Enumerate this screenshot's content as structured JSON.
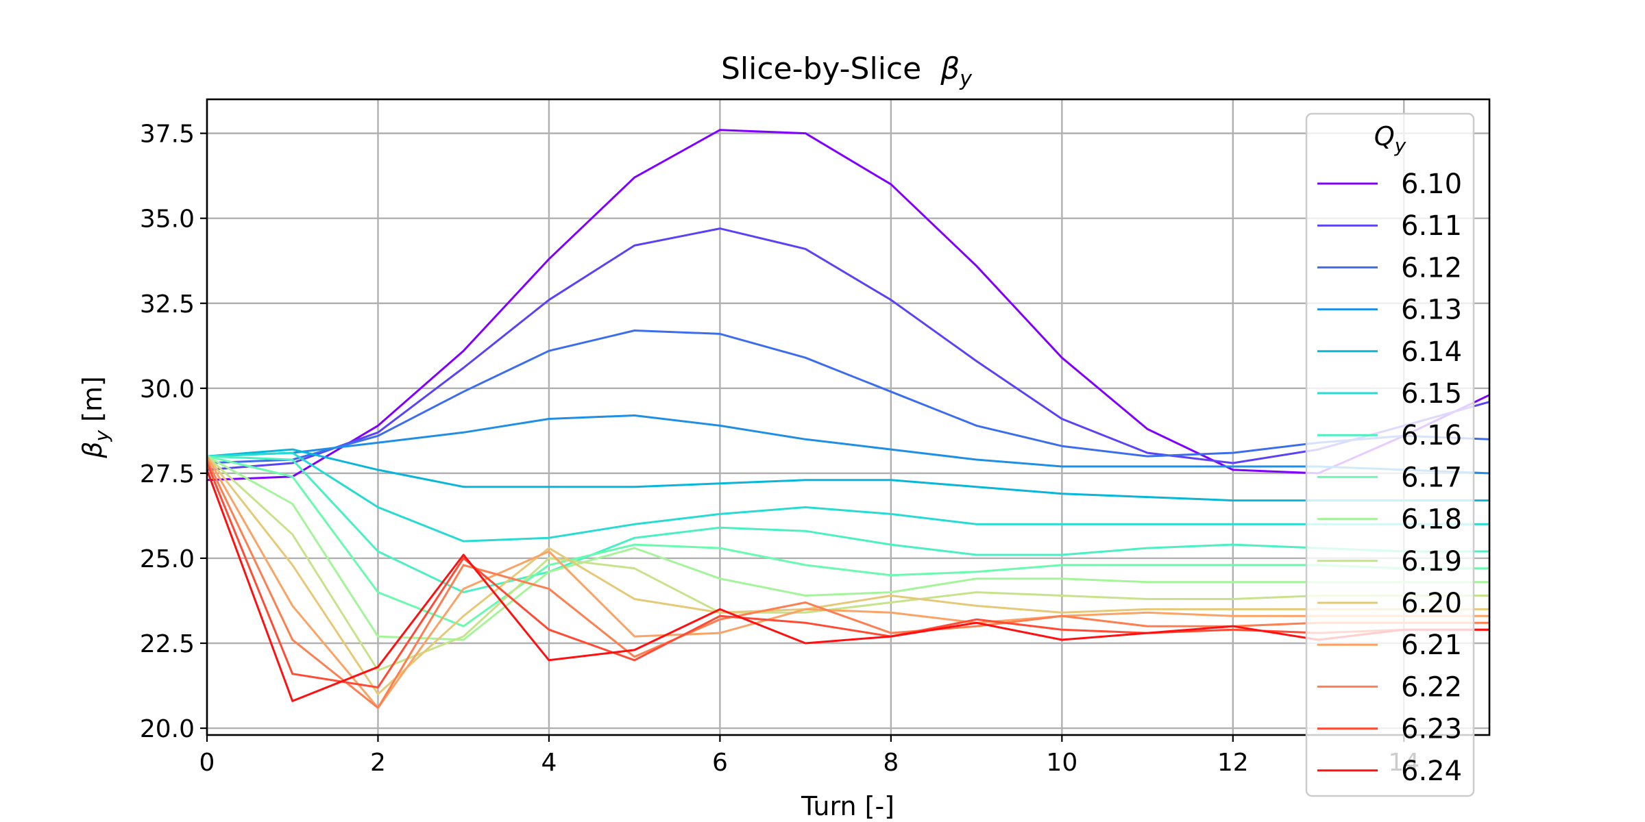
{
  "chart_data": {
    "type": "line",
    "title": "Slice-by-Slice",
    "title_symbol": "β",
    "title_symbol_sub": "y",
    "xlabel": "Turn [-]",
    "ylabel_symbol": "β",
    "ylabel_sub": "y",
    "ylabel_unit": " [m]",
    "xlim": [
      0,
      15
    ],
    "ylim": [
      19.8,
      38.5
    ],
    "x_ticks": [
      0,
      2,
      4,
      6,
      8,
      10,
      12,
      14
    ],
    "y_ticks": [
      20.0,
      22.5,
      25.0,
      27.5,
      30.0,
      32.5,
      35.0,
      37.5
    ],
    "grid": true,
    "legend": {
      "placement": "top-right",
      "title_symbol": "Q",
      "title_sub": "y"
    },
    "x": [
      0,
      1,
      2,
      3,
      4,
      5,
      6,
      7,
      8,
      9,
      10,
      11,
      12,
      13,
      14,
      15
    ],
    "series": [
      {
        "name": "6.10",
        "color": "#8000ff",
        "values": [
          27.3,
          27.4,
          28.9,
          31.1,
          33.8,
          36.2,
          37.6,
          37.5,
          36.0,
          33.6,
          30.9,
          28.8,
          27.6,
          27.5,
          28.6,
          29.8
        ]
      },
      {
        "name": "6.11",
        "color": "#5a42f6",
        "values": [
          27.6,
          27.8,
          28.7,
          30.6,
          32.6,
          34.2,
          34.7,
          34.1,
          32.6,
          30.8,
          29.1,
          28.1,
          27.8,
          28.2,
          28.9,
          29.6
        ]
      },
      {
        "name": "6.12",
        "color": "#3b6ded",
        "values": [
          27.8,
          27.9,
          28.6,
          29.9,
          31.1,
          31.7,
          31.6,
          30.9,
          29.9,
          28.9,
          28.3,
          28.0,
          28.1,
          28.4,
          28.6,
          28.5
        ]
      },
      {
        "name": "6.13",
        "color": "#1f8fe6",
        "values": [
          28.0,
          28.1,
          28.4,
          28.7,
          29.1,
          29.2,
          28.9,
          28.5,
          28.2,
          27.9,
          27.7,
          27.7,
          27.7,
          27.7,
          27.6,
          27.5
        ]
      },
      {
        "name": "6.14",
        "color": "#08b6d9",
        "values": [
          28.0,
          28.2,
          27.6,
          27.1,
          27.1,
          27.1,
          27.2,
          27.3,
          27.3,
          27.1,
          26.9,
          26.8,
          26.7,
          26.7,
          26.7,
          26.7
        ]
      },
      {
        "name": "6.15",
        "color": "#26dbd1",
        "values": [
          28.0,
          28.1,
          26.5,
          25.5,
          25.6,
          26.0,
          26.3,
          26.5,
          26.3,
          26.0,
          26.0,
          26.0,
          26.0,
          26.0,
          26.0,
          26.0
        ]
      },
      {
        "name": "6.16",
        "color": "#4af0c2",
        "values": [
          28.0,
          27.9,
          25.2,
          24.0,
          24.6,
          25.6,
          25.9,
          25.8,
          25.4,
          25.1,
          25.1,
          25.3,
          25.4,
          25.3,
          25.2,
          25.2
        ]
      },
      {
        "name": "6.17",
        "color": "#68fbaf",
        "values": [
          28.0,
          27.4,
          24.0,
          23.0,
          24.8,
          25.4,
          25.3,
          24.8,
          24.5,
          24.6,
          24.8,
          24.8,
          24.8,
          24.8,
          24.7,
          24.7
        ]
      },
      {
        "name": "6.18",
        "color": "#a4f59a",
        "values": [
          28.0,
          26.6,
          22.7,
          22.6,
          24.6,
          25.3,
          24.4,
          23.9,
          24.0,
          24.4,
          24.4,
          24.3,
          24.3,
          24.3,
          24.3,
          24.3
        ]
      },
      {
        "name": "6.19",
        "color": "#c7e38a",
        "values": [
          28.0,
          25.7,
          21.7,
          22.7,
          25.0,
          24.7,
          23.4,
          23.4,
          23.7,
          24.0,
          23.9,
          23.8,
          23.8,
          23.9,
          23.9,
          23.9
        ]
      },
      {
        "name": "6.20",
        "color": "#e6c977",
        "values": [
          28.0,
          24.8,
          21.0,
          23.3,
          25.3,
          23.8,
          23.4,
          23.5,
          23.9,
          23.6,
          23.4,
          23.5,
          23.5,
          23.5,
          23.5,
          23.5
        ]
      },
      {
        "name": "6.21",
        "color": "#fba364",
        "values": [
          28.0,
          23.6,
          20.6,
          24.1,
          25.2,
          22.7,
          22.8,
          23.5,
          23.4,
          23.1,
          23.3,
          23.4,
          23.3,
          23.3,
          23.3,
          23.3
        ]
      },
      {
        "name": "6.22",
        "color": "#fe7e4f",
        "values": [
          27.9,
          22.6,
          20.6,
          24.8,
          24.1,
          22.1,
          23.2,
          23.7,
          22.8,
          23.0,
          23.3,
          23.0,
          23.0,
          23.1,
          23.1,
          23.1
        ]
      },
      {
        "name": "6.23",
        "color": "#ff4b33",
        "values": [
          27.8,
          21.6,
          21.2,
          25.0,
          22.9,
          22.0,
          23.3,
          23.1,
          22.7,
          23.2,
          22.9,
          22.8,
          22.9,
          22.8,
          22.9,
          22.9
        ]
      },
      {
        "name": "6.24",
        "color": "#ff0f0f",
        "values": [
          27.6,
          20.8,
          21.8,
          25.1,
          22.0,
          22.3,
          23.5,
          22.5,
          22.7,
          23.1,
          22.6,
          22.8,
          23.0,
          22.6,
          22.9,
          22.9
        ]
      }
    ]
  }
}
